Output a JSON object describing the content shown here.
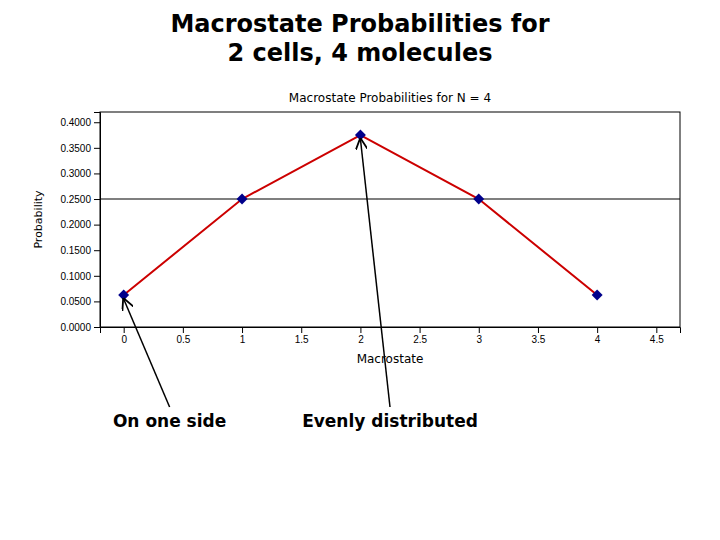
{
  "chart_data": {
    "type": "line",
    "title": "Macrostate Probabilities for\n2 cells, 4 molecules",
    "subtitle": "Macrostate Probabilities for N = 4",
    "x_label": "Macrostate",
    "y_label": "Probability",
    "x": [
      0,
      1,
      2,
      3,
      4
    ],
    "values": [
      0.0625,
      0.25,
      0.375,
      0.25,
      0.0625
    ],
    "color": "#cc0000",
    "colors": [
      "#00008B",
      "#00008B",
      "#00008B",
      "#00008B",
      "#00008B"
    ],
    "marker": "diamond",
    "hline": 0.25,
    "xlim": [
      -0.2,
      4.7
    ],
    "ylim": [
      0.0,
      0.42
    ],
    "xticks": [
      0,
      0.5,
      1,
      1.5,
      2,
      2.5,
      3,
      3.5,
      4,
      4.5
    ],
    "yticks": [
      {
        "value": 0.0,
        "label": "0.0000"
      },
      {
        "value": 0.05,
        "label": "0.0500"
      },
      {
        "value": 0.1,
        "label": "0.1000"
      },
      {
        "value": 0.15,
        "label": "0.1500"
      },
      {
        "value": 0.2,
        "label": "0.2000"
      },
      {
        "value": 0.25,
        "label": "0.2500"
      },
      {
        "value": 0.3,
        "label": "0.3000"
      },
      {
        "value": 0.35,
        "label": "0.3500"
      },
      {
        "value": 0.4,
        "label": "0.4000"
      }
    ],
    "annotations": [
      {
        "text": "On one side",
        "x": 0,
        "y": 0.0625
      },
      {
        "text": "Evenly distributed",
        "x": 2,
        "y": 0.375
      }
    ]
  }
}
